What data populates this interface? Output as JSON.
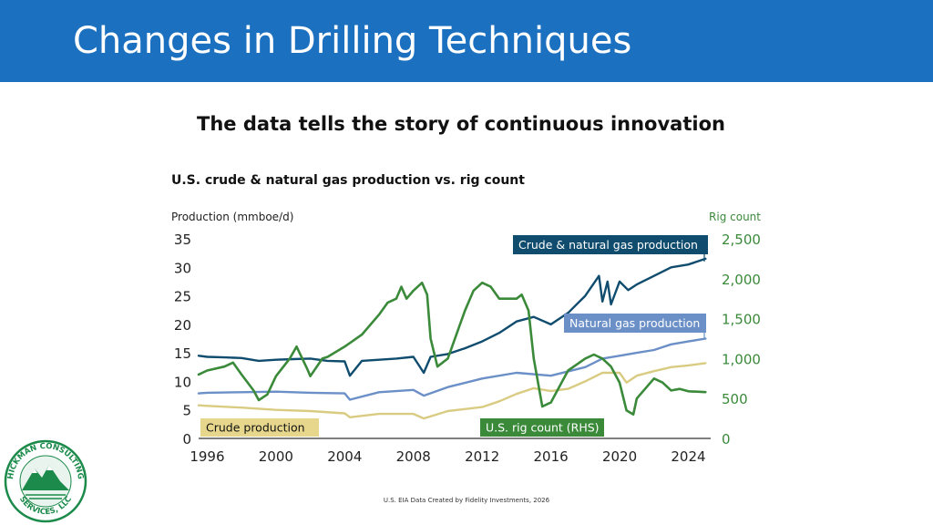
{
  "slide": {
    "title": "Changes in Drilling Techniques",
    "subtitle": "The data tells the story of continuous innovation",
    "source_note": "U.S. EIA Data Created by Fidelity Investments, 2026"
  },
  "logo": {
    "text_top": "HICKMAN CONSULTING",
    "text_bottom": "SERVICES, LLC",
    "colors": {
      "mountain": "#1b8a4a",
      "ring": "#1b8a4a"
    }
  },
  "chart_data": {
    "type": "line",
    "title": "U.S. crude & natural gas production vs. rig count",
    "ylabel_left": "Production (mmboe/d)",
    "ylabel_right": "Rig count",
    "x_ticks": [
      "1996",
      "2000",
      "2004",
      "2008",
      "2012",
      "2016",
      "2020",
      "2024"
    ],
    "y_left_ticks": [
      "0",
      "5",
      "10",
      "15",
      "20",
      "25",
      "30",
      "35"
    ],
    "y_right_ticks": [
      "0",
      "500",
      "1,000",
      "1,500",
      "2,000",
      "2,500"
    ],
    "xlim": [
      1995.5,
      2025.3
    ],
    "ylim_left": [
      0,
      35
    ],
    "ylim_right": [
      0,
      2500
    ],
    "grid": false,
    "series": [
      {
        "name": "Crude & natural gas production",
        "axis": "left",
        "color": "#0f4c6e",
        "x": [
          1995.5,
          1996,
          1997,
          1998,
          1999,
          2000,
          2001,
          2002,
          2003,
          2004,
          2004.3,
          2005,
          2006,
          2007,
          2008,
          2008.6,
          2009,
          2010,
          2011,
          2012,
          2013,
          2014,
          2015,
          2016,
          2017,
          2018,
          2018.8,
          2019,
          2019.3,
          2019.5,
          2020,
          2020.5,
          2021,
          2022,
          2023,
          2024,
          2025
        ],
        "y": [
          14.5,
          14.3,
          14.2,
          14.1,
          13.6,
          13.8,
          13.9,
          14.0,
          13.6,
          13.5,
          11.0,
          13.6,
          13.8,
          14.0,
          14.3,
          11.5,
          14.3,
          14.8,
          15.8,
          17.0,
          18.5,
          20.5,
          21.3,
          20.0,
          22.0,
          25.0,
          28.5,
          24.0,
          27.5,
          23.5,
          27.5,
          26.0,
          27.0,
          28.5,
          30.0,
          30.5,
          31.5
        ]
      },
      {
        "name": "Natural gas production",
        "axis": "left",
        "color": "#6b8fc7",
        "x": [
          1995.5,
          1996,
          1998,
          2000,
          2002,
          2004,
          2004.3,
          2006,
          2008,
          2008.6,
          2010,
          2012,
          2014,
          2016,
          2018,
          2019,
          2020,
          2021,
          2022,
          2023,
          2024,
          2025
        ],
        "y": [
          7.9,
          8.0,
          8.1,
          8.2,
          8.0,
          7.9,
          6.8,
          8.1,
          8.5,
          7.5,
          9.0,
          10.5,
          11.5,
          11.0,
          12.5,
          14.0,
          14.5,
          15.0,
          15.5,
          16.5,
          17.0,
          17.5
        ]
      },
      {
        "name": "Crude production",
        "axis": "left",
        "color": "#d9cc82",
        "x": [
          1995.5,
          1996,
          1998,
          2000,
          2002,
          2004,
          2004.3,
          2006,
          2008,
          2008.6,
          2010,
          2012,
          2013,
          2014,
          2015,
          2016,
          2017,
          2018,
          2019,
          2020,
          2020.4,
          2021,
          2022,
          2023,
          2024,
          2025
        ],
        "y": [
          5.8,
          5.7,
          5.4,
          5.0,
          4.8,
          4.4,
          3.7,
          4.3,
          4.3,
          3.5,
          4.8,
          5.5,
          6.5,
          7.8,
          8.8,
          8.3,
          8.7,
          10.0,
          11.5,
          11.5,
          9.8,
          11.0,
          11.8,
          12.5,
          12.8,
          13.2
        ]
      },
      {
        "name": "U.S. rig count (RHS)",
        "axis": "right",
        "color": "#3a8a3a",
        "x": [
          1995.5,
          1996,
          1997,
          1997.5,
          1998,
          1998.7,
          1999,
          1999.5,
          2000,
          2000.8,
          2001.2,
          2001.8,
          2002,
          2002.7,
          2003,
          2004,
          2005,
          2006,
          2006.5,
          2007,
          2007.3,
          2007.6,
          2008,
          2008.5,
          2008.8,
          2009,
          2009.4,
          2010,
          2010.5,
          2011,
          2011.5,
          2012,
          2012.5,
          2013,
          2013.5,
          2014,
          2014.3,
          2014.7,
          2015,
          2015.5,
          2016,
          2016.5,
          2017,
          2018,
          2018.5,
          2019,
          2019.5,
          2020,
          2020.4,
          2020.8,
          2021,
          2022,
          2022.5,
          2023,
          2023.5,
          2024,
          2025
        ],
        "y": [
          800,
          850,
          900,
          950,
          800,
          600,
          480,
          550,
          780,
          1000,
          1150,
          880,
          780,
          1000,
          1020,
          1150,
          1300,
          1550,
          1700,
          1750,
          1900,
          1750,
          1850,
          1950,
          1800,
          1250,
          900,
          1000,
          1300,
          1600,
          1850,
          1950,
          1900,
          1750,
          1750,
          1750,
          1800,
          1600,
          1000,
          400,
          450,
          650,
          850,
          1000,
          1050,
          1000,
          900,
          700,
          350,
          300,
          500,
          750,
          700,
          600,
          620,
          590,
          580
        ]
      }
    ],
    "annotations": [
      {
        "label": "Crude & natural gas production",
        "bg": "#0f4c6e",
        "fg": "#ffffff"
      },
      {
        "label": "Natural gas production",
        "bg": "#6b8fc7",
        "fg": "#ffffff"
      },
      {
        "label": "Crude production",
        "bg": "#e6d78c",
        "fg": "#111111"
      },
      {
        "label": "U.S. rig count (RHS)",
        "bg": "#3a8a3a",
        "fg": "#ffffff"
      }
    ]
  }
}
